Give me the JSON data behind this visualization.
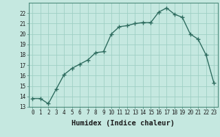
{
  "x": [
    0,
    1,
    2,
    3,
    4,
    5,
    6,
    7,
    8,
    9,
    10,
    11,
    12,
    13,
    14,
    15,
    16,
    17,
    18,
    19,
    20,
    21,
    22,
    23
  ],
  "y": [
    13.8,
    13.8,
    13.3,
    14.7,
    16.1,
    16.7,
    17.1,
    17.5,
    18.2,
    18.3,
    20.0,
    20.7,
    20.8,
    21.0,
    21.1,
    21.1,
    22.1,
    22.5,
    21.9,
    21.6,
    20.0,
    19.5,
    18.0,
    15.3
  ],
  "line_color": "#2d6b5e",
  "marker": "+",
  "marker_size": 4,
  "bg_color": "#c5e8e0",
  "grid_color": "#9ecfc4",
  "xlabel": "Humidex (Indice chaleur)",
  "xlim": [
    -0.5,
    23.5
  ],
  "ylim": [
    13,
    23
  ],
  "yticks": [
    13,
    14,
    15,
    16,
    17,
    18,
    19,
    20,
    21,
    22
  ],
  "xticks": [
    0,
    1,
    2,
    3,
    4,
    5,
    6,
    7,
    8,
    9,
    10,
    11,
    12,
    13,
    14,
    15,
    16,
    17,
    18,
    19,
    20,
    21,
    22,
    23
  ],
  "tick_fontsize": 5.5,
  "xlabel_fontsize": 7.5,
  "line_width": 1.0
}
